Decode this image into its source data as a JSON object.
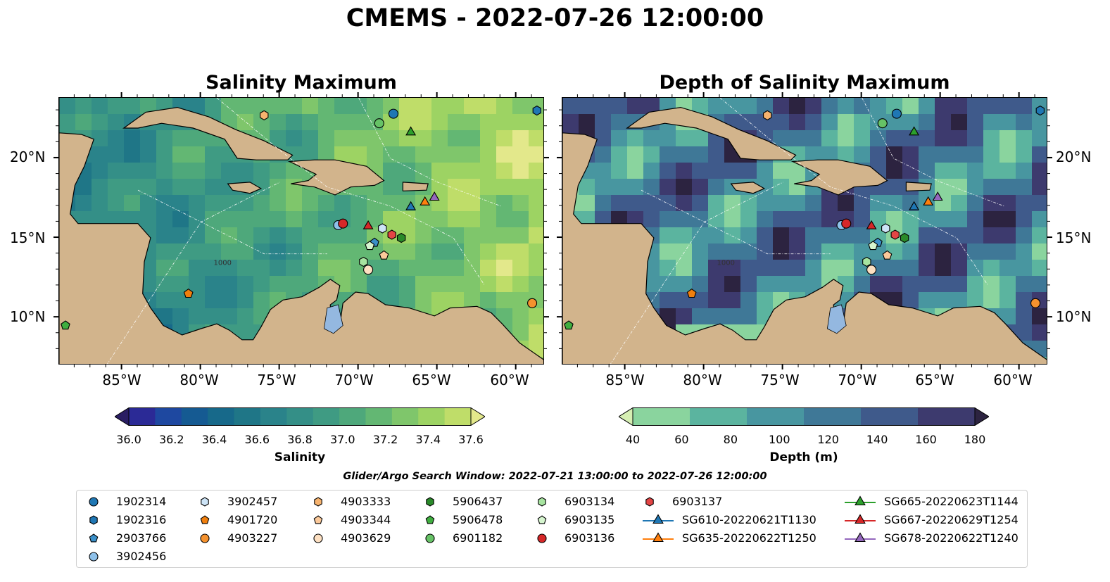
{
  "suptitle": "CMEMS - 2022-07-26 12:00:00",
  "panels": [
    {
      "title": "Salinity Maximum"
    },
    {
      "title": "Depth of Salinity Maximum"
    }
  ],
  "lat_labels": [
    "20°N",
    "15°N",
    "10°N"
  ],
  "lon_labels": [
    "85°W",
    "80°W",
    "75°W",
    "70°W",
    "65°W",
    "60°W"
  ],
  "salinity_colorbar": {
    "label": "Salinity",
    "ticks": [
      "36.0",
      "36.2",
      "36.4",
      "36.6",
      "36.8",
      "37.0",
      "37.2",
      "37.4",
      "37.6"
    ],
    "colors": [
      "#2a1e63",
      "#2b2a96",
      "#1e48a0",
      "#155a92",
      "#17698a",
      "#1f7687",
      "#2a838a",
      "#348f87",
      "#3f9b83",
      "#4ea87b",
      "#63b773",
      "#7fc66b",
      "#9dd363",
      "#bfdd69",
      "#e3e88b"
    ]
  },
  "depth_colorbar": {
    "label": "Depth (m)",
    "ticks": [
      "40",
      "60",
      "80",
      "100",
      "120",
      "140",
      "160",
      "180"
    ],
    "colors": [
      "#d6efb3",
      "#8ad49e",
      "#5bb49f",
      "#4896a0",
      "#3f7897",
      "#3f5a8b",
      "#3d3a6e",
      "#2c2340"
    ]
  },
  "search_window": "Glider/Argo Search Window: 2022-07-21 13:00:00 to 2022-07-26 12:00:00",
  "map_labels": {
    "isobath_1000": "1000"
  },
  "colors": {
    "land": "#d2b48c",
    "lake": "#94b8e0",
    "border": "#000000"
  },
  "legend": [
    {
      "label": "1902314",
      "marker": "circle",
      "color": "#1f77b4"
    },
    {
      "label": "1902316",
      "marker": "hexagon",
      "color": "#1f77b4"
    },
    {
      "label": "2903766",
      "marker": "pentagon",
      "color": "#3a8fc8"
    },
    {
      "label": "3902456",
      "marker": "circle",
      "color": "#8ec1ea"
    },
    {
      "label": "3902457",
      "marker": "hexagon",
      "color": "#cde4f7"
    },
    {
      "label": "4901720",
      "marker": "pentagon",
      "color": "#f07f0e"
    },
    {
      "label": "4903227",
      "marker": "circle",
      "color": "#f5922e"
    },
    {
      "label": "4903333",
      "marker": "hexagon",
      "color": "#f7b36e"
    },
    {
      "label": "4903344",
      "marker": "pentagon",
      "color": "#fbc99a"
    },
    {
      "label": "4903629",
      "marker": "circle",
      "color": "#fde0c2"
    },
    {
      "label": "5906437",
      "marker": "hexagon",
      "color": "#2a8a2a"
    },
    {
      "label": "5906478",
      "marker": "pentagon",
      "color": "#3fae3f"
    },
    {
      "label": "6901182",
      "marker": "circle",
      "color": "#66c266"
    },
    {
      "label": "6903134",
      "marker": "hexagon",
      "color": "#a7e4a0"
    },
    {
      "label": "6903135",
      "marker": "pentagon",
      "color": "#d6f5cf"
    },
    {
      "label": "6903136",
      "marker": "circle",
      "color": "#d62728"
    },
    {
      "label": "6903137",
      "marker": "hexagon",
      "color": "#e34545"
    },
    {
      "label": "SG610-20220621T1130",
      "marker": "triangle",
      "color": "#1f77b4"
    },
    {
      "label": "SG635-20220622T1250",
      "marker": "triangle",
      "color": "#ff7f0e"
    },
    {
      "label": "SG665-20220623T1144",
      "marker": "triangle",
      "color": "#2ca02c"
    },
    {
      "label": "SG667-20220629T1254",
      "marker": "triangle",
      "color": "#d62728"
    },
    {
      "label": "SG678-20220622T1240",
      "marker": "triangle",
      "color": "#9467bd"
    }
  ],
  "platform_positions": [
    {
      "id": "1902314",
      "lon": -67.8,
      "lat": 22.8
    },
    {
      "id": "1902316",
      "lon": -58.7,
      "lat": 23.0
    },
    {
      "id": "2903766",
      "lon": -69.0,
      "lat": 14.7
    },
    {
      "id": "3902456",
      "lon": -71.3,
      "lat": 15.8
    },
    {
      "id": "3902457",
      "lon": -68.5,
      "lat": 15.6
    },
    {
      "id": "4901720",
      "lon": -80.8,
      "lat": 11.5
    },
    {
      "id": "4903227",
      "lon": -59.0,
      "lat": 10.9
    },
    {
      "id": "4903333",
      "lon": -76.0,
      "lat": 22.7
    },
    {
      "id": "4903344",
      "lon": -68.4,
      "lat": 13.9
    },
    {
      "id": "4903629",
      "lon": -69.4,
      "lat": 13.0
    },
    {
      "id": "5906437",
      "lon": -67.3,
      "lat": 15.0
    },
    {
      "id": "5906478",
      "lon": -88.6,
      "lat": 9.5
    },
    {
      "id": "6901182",
      "lon": -68.7,
      "lat": 22.2
    },
    {
      "id": "6903134",
      "lon": -69.7,
      "lat": 13.5
    },
    {
      "id": "6903135",
      "lon": -69.3,
      "lat": 14.5
    },
    {
      "id": "6903136",
      "lon": -71.0,
      "lat": 15.9
    },
    {
      "id": "6903137",
      "lon": -67.9,
      "lat": 15.2
    },
    {
      "id": "SG610-20220621T1130",
      "lon": -66.7,
      "lat": 17.0
    },
    {
      "id": "SG635-20220622T1250",
      "lon": -65.8,
      "lat": 17.3
    },
    {
      "id": "SG665-20220623T1144",
      "lon": -66.7,
      "lat": 21.7
    },
    {
      "id": "SG667-20220629T1254",
      "lon": -69.4,
      "lat": 15.8
    },
    {
      "id": "SG678-20220622T1240",
      "lon": -65.2,
      "lat": 17.6
    }
  ]
}
